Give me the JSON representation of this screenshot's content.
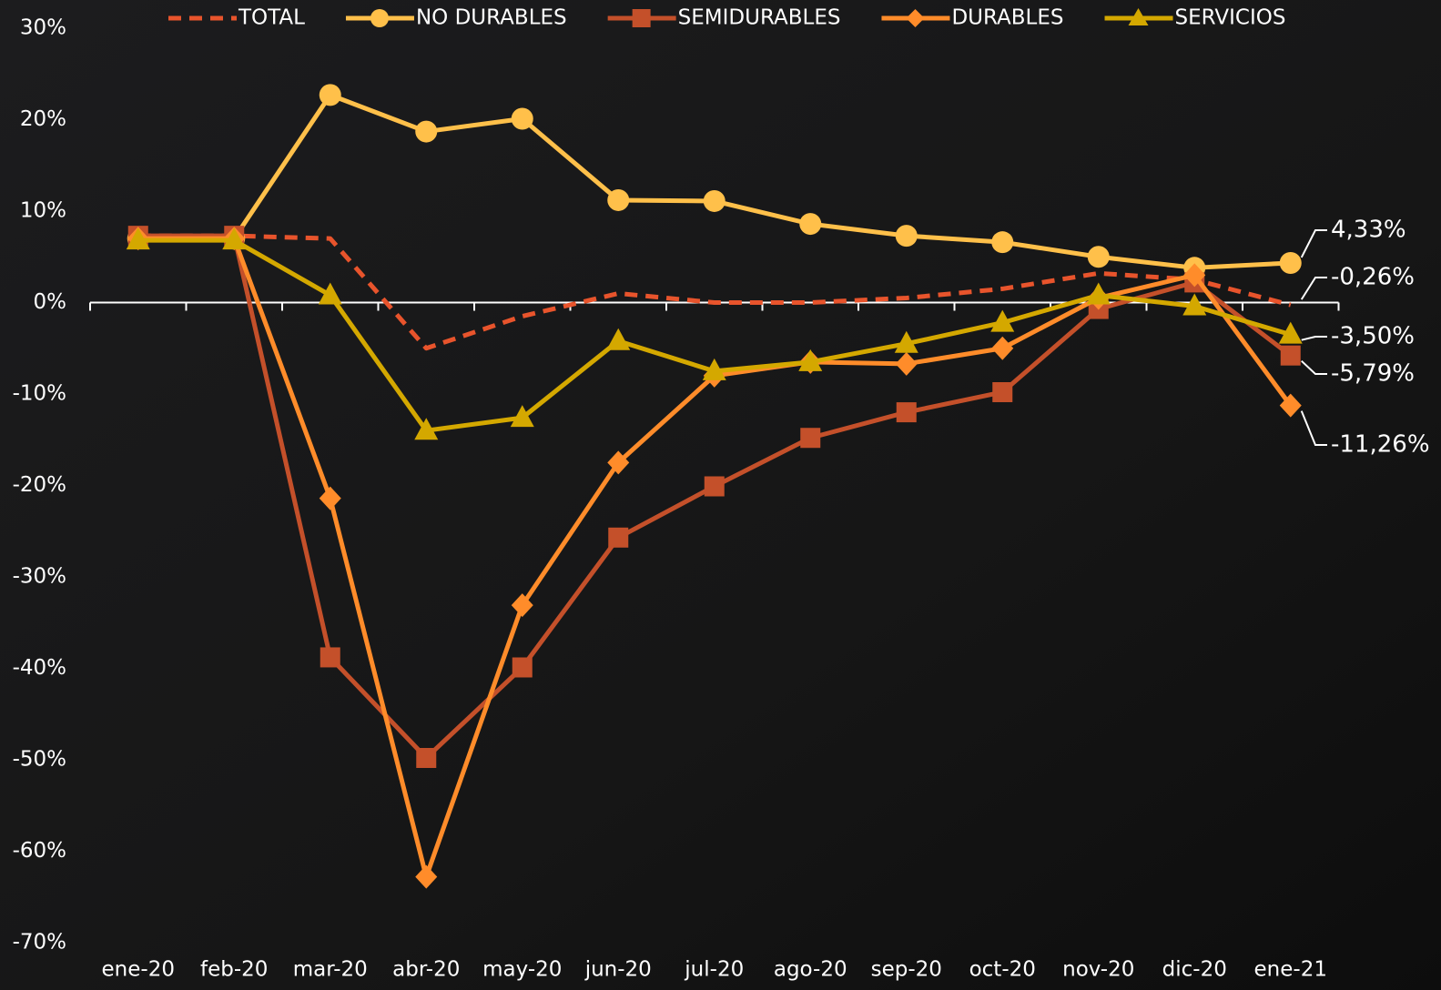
{
  "chart_data": {
    "type": "line",
    "categories": [
      "ene-20",
      "feb-20",
      "mar-20",
      "abr-20",
      "may-20",
      "jun-20",
      "jul-20",
      "ago-20",
      "sep-20",
      "oct-20",
      "nov-20",
      "dic-20",
      "ene-21"
    ],
    "ylim": [
      -70,
      30
    ],
    "yticks": [
      {
        "value": -70,
        "label": "-70%"
      },
      {
        "value": -60,
        "label": "-60%"
      },
      {
        "value": -50,
        "label": "-50%"
      },
      {
        "value": -40,
        "label": "-40%"
      },
      {
        "value": -30,
        "label": "-30%"
      },
      {
        "value": -20,
        "label": "-20%"
      },
      {
        "value": -10,
        "label": "-10%"
      },
      {
        "value": 0,
        "label": "0%"
      },
      {
        "value": 10,
        "label": "10%"
      },
      {
        "value": 20,
        "label": "20%"
      },
      {
        "value": 30,
        "label": "30%"
      }
    ],
    "series": [
      {
        "name": "TOTAL",
        "color": "#e8542c",
        "dashed": true,
        "marker": "none",
        "values": [
          7.3,
          7.3,
          7,
          -5,
          -1.5,
          1,
          0,
          0,
          0.5,
          1.5,
          3.2,
          2.5,
          -0.26
        ],
        "value_labels": [
          null,
          null,
          null,
          null,
          null,
          null,
          null,
          null,
          null,
          null,
          null,
          null,
          "-0,26%"
        ]
      },
      {
        "name": "NO DURABLES",
        "color": "#ffc04a",
        "dashed": false,
        "marker": "circle",
        "values": [
          7,
          7,
          22.7,
          18.7,
          20.1,
          11.2,
          11.1,
          8.6,
          7.3,
          6.6,
          5,
          3.8,
          4.33
        ],
        "value_labels": [
          null,
          null,
          null,
          null,
          null,
          null,
          null,
          null,
          null,
          null,
          null,
          null,
          "4,33%"
        ]
      },
      {
        "name": "SEMIDURABLES",
        "color": "#c4502a",
        "dashed": false,
        "marker": "square",
        "values": [
          7.3,
          7.3,
          -38.8,
          -49.8,
          -39.9,
          -25.7,
          -20.1,
          -14.8,
          -12,
          -9.8,
          -0.7,
          2.2,
          -5.79
        ],
        "value_labels": [
          null,
          null,
          null,
          null,
          null,
          null,
          null,
          null,
          null,
          null,
          null,
          null,
          "-5,79%"
        ]
      },
      {
        "name": "DURABLES",
        "color": "#ff8c2a",
        "dashed": false,
        "marker": "diamond",
        "values": [
          7,
          7,
          -21.4,
          -62.8,
          -33.1,
          -17.5,
          -8,
          -6.5,
          -6.7,
          -5,
          0.5,
          3,
          -11.26
        ],
        "value_labels": [
          null,
          null,
          null,
          null,
          null,
          null,
          null,
          null,
          null,
          null,
          null,
          null,
          "-11,26%"
        ]
      },
      {
        "name": "SERVICIOS",
        "color": "#d4a800",
        "dashed": false,
        "marker": "triangle",
        "values": [
          6.8,
          6.8,
          0.8,
          -14,
          -12.6,
          -4.2,
          -7.5,
          -6.5,
          -4.5,
          -2.2,
          0.8,
          -0.4,
          -3.5
        ],
        "value_labels": [
          null,
          null,
          null,
          null,
          null,
          null,
          null,
          null,
          null,
          null,
          null,
          null,
          "-3,50%"
        ]
      }
    ]
  }
}
